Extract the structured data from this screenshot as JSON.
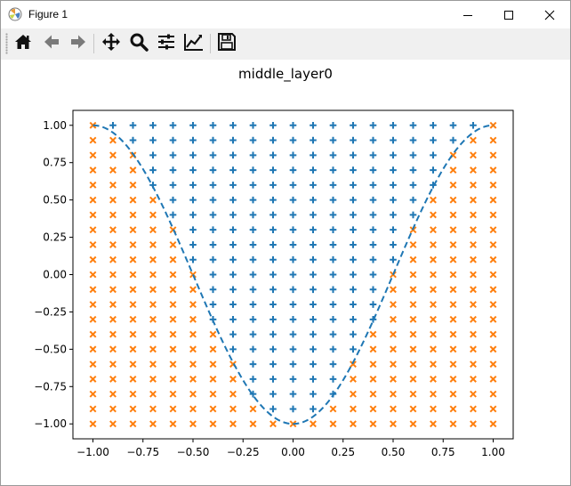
{
  "window": {
    "title": "Figure 1",
    "controls": [
      "minimize-icon",
      "maximize-icon",
      "close-icon"
    ]
  },
  "toolbar": {
    "tools": [
      {
        "name": "home-icon",
        "tooltip": "Home"
      },
      {
        "name": "back-arrow-icon",
        "tooltip": "Back"
      },
      {
        "name": "forward-arrow-icon",
        "tooltip": "Forward"
      },
      {
        "name": "pan-move-icon",
        "tooltip": "Pan"
      },
      {
        "name": "zoom-magnifier-icon",
        "tooltip": "Zoom"
      },
      {
        "name": "configure-subplots-icon",
        "tooltip": "Subplots"
      },
      {
        "name": "edit-axis-curve-icon",
        "tooltip": "Customize"
      },
      {
        "name": "save-disk-icon",
        "tooltip": "Save"
      }
    ]
  },
  "chart_data": {
    "type": "scatter",
    "title": "middle_layer0",
    "xlabel": "",
    "ylabel": "",
    "xlim": [
      -1.1,
      1.1
    ],
    "ylim": [
      -1.1,
      1.1
    ],
    "xticks": [
      "−1.00",
      "−0.75",
      "−0.50",
      "−0.25",
      "0.00",
      "0.25",
      "0.50",
      "0.75",
      "1.00"
    ],
    "yticks": [
      "−1.00",
      "−0.75",
      "−0.50",
      "−0.25",
      "0.00",
      "0.25",
      "0.50",
      "0.75",
      "1.00"
    ],
    "xtick_values": [
      -1,
      -0.75,
      -0.5,
      -0.25,
      0,
      0.25,
      0.5,
      0.75,
      1
    ],
    "ytick_values": [
      -1,
      -0.75,
      -0.5,
      -0.25,
      0,
      0.25,
      0.5,
      0.75,
      1
    ],
    "grid": false,
    "legend": "none",
    "grid_points": {
      "x_start": -1.0,
      "x_step": 0.1,
      "x_count": 21,
      "y_start": -1.0,
      "y_step": 0.1,
      "y_count": 21,
      "rule": "class 0 (plus) where y > -cos(pi*x); class 1 (x) otherwise"
    },
    "series": [
      {
        "marker": "plus",
        "color": "#1f77b4"
      },
      {
        "marker": "x",
        "color": "#ff7f0e"
      },
      {
        "style": "dashed",
        "color": "#1f77b4",
        "function": "y = -cos(pi*x)"
      }
    ]
  }
}
